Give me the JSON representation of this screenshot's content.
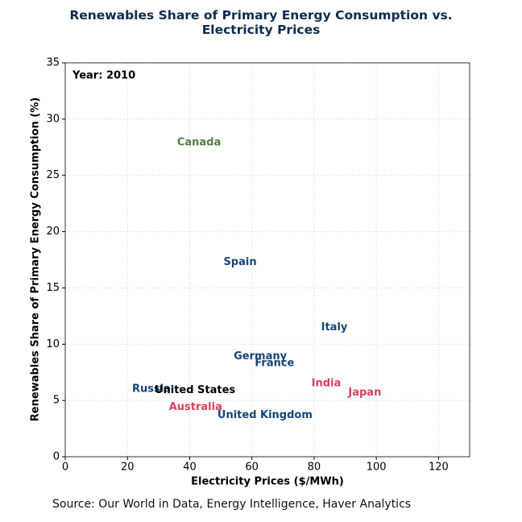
{
  "chart_data": {
    "type": "text-scatter",
    "title": "Renewables Share of Primary Energy Consumption vs. Electricity Prices",
    "annotation": "Year: 2010",
    "x_label": "Electricity Prices ($/MWh)",
    "y_label": "Renewables Share of Primary Energy Consumption (%)",
    "source": "Source: Our World in Data, Energy Intelligence, Haver Analytics",
    "xlim": [
      0,
      130
    ],
    "xticks": [
      0,
      20,
      40,
      60,
      80,
      100,
      120
    ],
    "ylim": [
      0,
      35
    ],
    "yticks": [
      0,
      5,
      10,
      15,
      20,
      25,
      30,
      35
    ],
    "grid": true,
    "points": [
      {
        "label": "Canada",
        "x": 43.0,
        "y": 27.9,
        "color": "#557a46"
      },
      {
        "label": "Spain",
        "x": 56.2,
        "y": 17.3,
        "color": "#15467a"
      },
      {
        "label": "Italy",
        "x": 86.5,
        "y": 11.5,
        "color": "#15467a"
      },
      {
        "label": "Germany",
        "x": 62.7,
        "y": 8.9,
        "color": "#15467a"
      },
      {
        "label": "France",
        "x": 67.3,
        "y": 8.3,
        "color": "#15467a"
      },
      {
        "label": "India",
        "x": 83.9,
        "y": 6.5,
        "color": "#d6405e"
      },
      {
        "label": "Japan",
        "x": 96.3,
        "y": 5.7,
        "color": "#d6405e"
      },
      {
        "label": "Russia",
        "x": 27.7,
        "y": 6.0,
        "color": "#15467a"
      },
      {
        "label": "United States",
        "x": 41.7,
        "y": 5.9,
        "color": "#000000"
      },
      {
        "label": "Australia",
        "x": 41.9,
        "y": 4.4,
        "color": "#d6405e"
      },
      {
        "label": "United Kingdom",
        "x": 64.2,
        "y": 3.7,
        "color": "#15467a"
      }
    ]
  }
}
